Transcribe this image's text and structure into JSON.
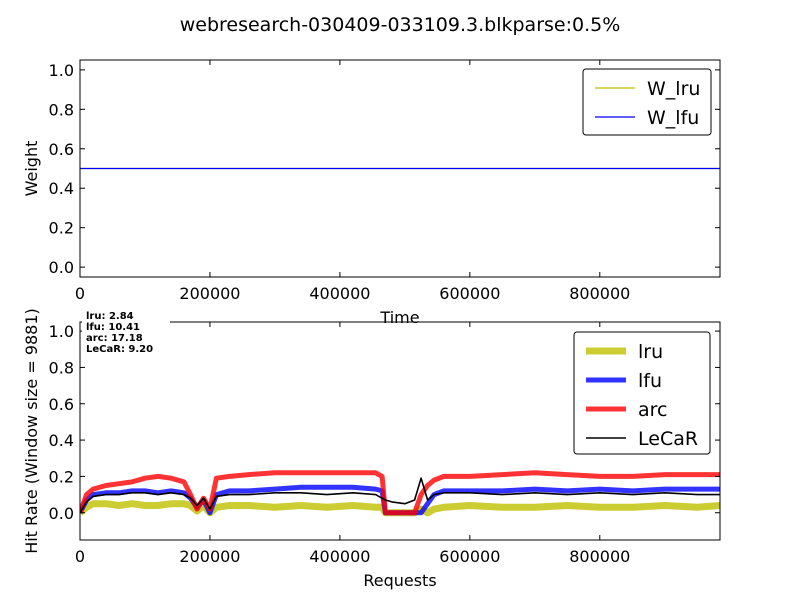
{
  "title": "webresearch-030409-033109.3.blkparse:0.5%",
  "chart_data": [
    {
      "type": "line",
      "xlabel": "Time",
      "ylabel": "Weight",
      "xlim": [
        0,
        985000
      ],
      "ylim": [
        -0.05,
        1.05
      ],
      "xticks": [
        0,
        200000,
        400000,
        600000,
        800000
      ],
      "xtick_labels": [
        "0",
        "200000",
        "400000",
        "600000",
        "800000"
      ],
      "yticks": [
        0.0,
        0.2,
        0.4,
        0.6,
        0.8,
        1.0
      ],
      "ytick_labels": [
        "0.0",
        "0.2",
        "0.4",
        "0.6",
        "0.8",
        "1.0"
      ],
      "legend_position": "top-right",
      "series": [
        {
          "name": "W_lru",
          "color": "#bfbf00",
          "x": [
            0,
            985000
          ],
          "values": [
            0.5,
            0.5
          ]
        },
        {
          "name": "W_lfu",
          "color": "#0000ff",
          "x": [
            0,
            985000
          ],
          "values": [
            0.5,
            0.5
          ]
        }
      ]
    },
    {
      "type": "line",
      "xlabel": "Requests",
      "ylabel": "Hit Rate (Window size = 9881)",
      "xlim": [
        0,
        985000
      ],
      "ylim": [
        -0.15,
        1.05
      ],
      "xticks": [
        0,
        200000,
        400000,
        600000,
        800000
      ],
      "xtick_labels": [
        "0",
        "200000",
        "400000",
        "600000",
        "800000"
      ],
      "yticks": [
        0.0,
        0.2,
        0.4,
        0.6,
        0.8,
        1.0
      ],
      "ytick_labels": [
        "0.0",
        "0.2",
        "0.4",
        "0.6",
        "0.8",
        "1.0"
      ],
      "legend_position": "top-right",
      "annotation": [
        "lru:  2.84",
        "lfu:  10.41",
        "arc:  17.18",
        "LeCaR:  9.20"
      ],
      "x": [
        0,
        10000,
        20000,
        40000,
        60000,
        80000,
        100000,
        120000,
        140000,
        160000,
        170000,
        180000,
        190000,
        200000,
        210000,
        230000,
        260000,
        300000,
        340000,
        380000,
        420000,
        455000,
        465000,
        470000,
        480000,
        500000,
        515000,
        525000,
        535000,
        545000,
        560000,
        600000,
        650000,
        700000,
        750000,
        800000,
        850000,
        900000,
        950000,
        985000
      ],
      "series": [
        {
          "name": "lru",
          "color": "#bfbf00",
          "width": 7,
          "values": [
            0.0,
            0.03,
            0.05,
            0.05,
            0.04,
            0.05,
            0.04,
            0.04,
            0.05,
            0.05,
            0.04,
            0.01,
            0.04,
            0.0,
            0.03,
            0.04,
            0.04,
            0.03,
            0.04,
            0.03,
            0.04,
            0.03,
            0.03,
            0.0,
            0.0,
            0.0,
            0.0,
            0.02,
            0.0,
            0.02,
            0.03,
            0.04,
            0.03,
            0.03,
            0.04,
            0.03,
            0.03,
            0.04,
            0.03,
            0.04
          ]
        },
        {
          "name": "lfu",
          "color": "#0000ff",
          "width": 5,
          "values": [
            0.0,
            0.07,
            0.1,
            0.11,
            0.11,
            0.12,
            0.12,
            0.11,
            0.12,
            0.11,
            0.08,
            0.03,
            0.07,
            0.0,
            0.1,
            0.12,
            0.12,
            0.13,
            0.14,
            0.14,
            0.14,
            0.13,
            0.12,
            0.0,
            0.0,
            0.0,
            0.0,
            0.0,
            0.05,
            0.1,
            0.12,
            0.12,
            0.12,
            0.13,
            0.12,
            0.13,
            0.12,
            0.13,
            0.13,
            0.13
          ]
        },
        {
          "name": "arc",
          "color": "#ff0000",
          "width": 5,
          "values": [
            0.0,
            0.1,
            0.13,
            0.15,
            0.16,
            0.17,
            0.19,
            0.2,
            0.19,
            0.17,
            0.1,
            0.02,
            0.08,
            0.02,
            0.19,
            0.2,
            0.21,
            0.22,
            0.22,
            0.22,
            0.22,
            0.22,
            0.2,
            0.0,
            0.0,
            0.0,
            0.0,
            0.1,
            0.15,
            0.18,
            0.2,
            0.2,
            0.21,
            0.22,
            0.21,
            0.2,
            0.2,
            0.21,
            0.21,
            0.21
          ]
        },
        {
          "name": "LeCaR",
          "color": "#000000",
          "width": 1.6,
          "values": [
            0.0,
            0.06,
            0.09,
            0.1,
            0.1,
            0.11,
            0.11,
            0.1,
            0.11,
            0.1,
            0.08,
            0.04,
            0.08,
            0.02,
            0.09,
            0.1,
            0.1,
            0.11,
            0.11,
            0.1,
            0.11,
            0.1,
            0.08,
            0.07,
            0.06,
            0.05,
            0.07,
            0.19,
            0.07,
            0.1,
            0.11,
            0.11,
            0.1,
            0.11,
            0.1,
            0.11,
            0.1,
            0.11,
            0.1,
            0.1
          ]
        }
      ]
    }
  ]
}
